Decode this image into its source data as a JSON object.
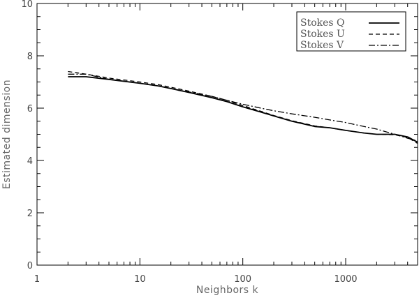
{
  "chart_data": {
    "type": "line",
    "title": "",
    "xlabel": "Neighbors k",
    "ylabel": "Estimated dimension",
    "xscale": "log",
    "xlim": [
      1,
      5000
    ],
    "ylim": [
      0,
      10
    ],
    "xticks": [
      {
        "value": 1,
        "label": "1"
      },
      {
        "value": 10,
        "label": "10"
      },
      {
        "value": 100,
        "label": "100"
      },
      {
        "value": 1000,
        "label": "1000"
      }
    ],
    "yticks": [
      {
        "value": 0,
        "label": "0"
      },
      {
        "value": 2,
        "label": "2"
      },
      {
        "value": 4,
        "label": "4"
      },
      {
        "value": 6,
        "label": "6"
      },
      {
        "value": 8,
        "label": "8"
      },
      {
        "value": 10,
        "label": "10"
      }
    ],
    "grid": false,
    "legend_position": "top-right",
    "series": [
      {
        "name": "Stokes Q",
        "dash": "solid",
        "x": [
          2,
          3,
          5,
          10,
          15,
          20,
          30,
          50,
          70,
          100,
          150,
          200,
          300,
          500,
          700,
          1000,
          1500,
          2000,
          3000,
          4000,
          5000
        ],
        "y": [
          7.2,
          7.2,
          7.1,
          6.95,
          6.85,
          6.75,
          6.6,
          6.4,
          6.25,
          6.05,
          5.85,
          5.7,
          5.5,
          5.3,
          5.25,
          5.15,
          5.05,
          5.0,
          5.0,
          4.9,
          4.7
        ]
      },
      {
        "name": "Stokes U",
        "dash": "dashed",
        "x": [
          2,
          3,
          5,
          10,
          15,
          20,
          30,
          50,
          70,
          100,
          150,
          200,
          300,
          500,
          700,
          1000,
          1500,
          2000,
          3000,
          4000,
          5000
        ],
        "y": [
          7.4,
          7.3,
          7.15,
          7.0,
          6.9,
          6.8,
          6.65,
          6.45,
          6.3,
          6.1,
          5.88,
          5.72,
          5.52,
          5.32,
          5.25,
          5.15,
          5.05,
          5.0,
          4.98,
          4.88,
          4.65
        ]
      },
      {
        "name": "Stokes V",
        "dash": "dashdot",
        "x": [
          2,
          3,
          5,
          10,
          15,
          20,
          30,
          50,
          70,
          100,
          150,
          200,
          300,
          500,
          700,
          1000,
          1500,
          2000,
          3000,
          4000,
          5000
        ],
        "y": [
          7.3,
          7.3,
          7.1,
          6.95,
          6.85,
          6.75,
          6.62,
          6.45,
          6.3,
          6.15,
          6.0,
          5.9,
          5.78,
          5.65,
          5.55,
          5.45,
          5.3,
          5.2,
          5.0,
          4.85,
          4.75
        ]
      }
    ]
  }
}
